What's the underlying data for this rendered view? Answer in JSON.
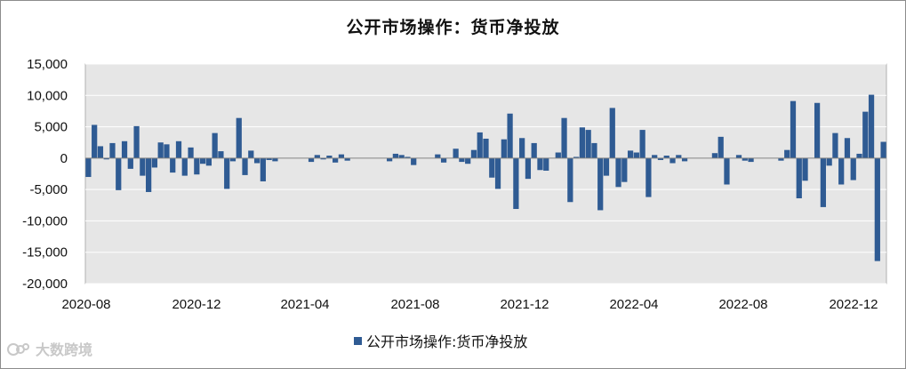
{
  "title": "公开市场操作：货币净投放",
  "legend_label": "公开市场操作:货币净投放",
  "watermark_text": "大数跨境",
  "colors": {
    "bar": "#2f5b93",
    "plot_bg": "#e6e6e6",
    "grid": "#ffffff"
  },
  "chart_data": {
    "type": "bar",
    "title": "公开市场操作：货币净投放",
    "xlabel": "",
    "ylabel": "",
    "ylim": [
      -20000,
      15000
    ],
    "yticks": [
      15000,
      10000,
      5000,
      0,
      -5000,
      -10000,
      -15000,
      -20000
    ],
    "ytick_labels": [
      "15,000",
      "10,000",
      "5,000",
      "0",
      "-5,000",
      "-10,000",
      "-15,000",
      "-20,000"
    ],
    "xtick_labels": [
      "2020-08",
      "2020-12",
      "2021-04",
      "2021-08",
      "2021-12",
      "2022-04",
      "2022-08",
      "2022-12"
    ],
    "legend_position": "bottom",
    "grid": true,
    "series": [
      {
        "name": "公开市场操作:货币净投放",
        "values": [
          -3000,
          5300,
          1900,
          -200,
          2400,
          -5100,
          2700,
          -1700,
          5100,
          -2800,
          -5400,
          -1500,
          2500,
          2200,
          -2300,
          2700,
          -2800,
          1700,
          -2600,
          -900,
          -1200,
          4000,
          1100,
          -4900,
          -500,
          6400,
          -2700,
          1200,
          -800,
          -3700,
          -300,
          -500,
          0,
          0,
          0,
          0,
          0,
          -600,
          500,
          -200,
          400,
          -700,
          600,
          -400,
          0,
          0,
          0,
          0,
          0,
          0,
          -500,
          700,
          500,
          200,
          -1100,
          0,
          0,
          0,
          600,
          -700,
          0,
          1500,
          -600,
          -900,
          1300,
          4100,
          3100,
          -3100,
          -4900,
          3000,
          7100,
          -8100,
          3200,
          -3300,
          2400,
          -1900,
          -2000,
          0,
          900,
          6400,
          -7000,
          200,
          4900,
          4500,
          2400,
          -8300,
          -2800,
          8000,
          -4600,
          -3800,
          1200,
          900,
          4500,
          -6200,
          500,
          -300,
          400,
          -800,
          500,
          -500,
          0,
          0,
          0,
          0,
          800,
          3400,
          -4200,
          0,
          500,
          -400,
          -600,
          0,
          0,
          0,
          0,
          -400,
          1300,
          9100,
          -6400,
          -3600,
          0,
          8800,
          -7800,
          -1200,
          4000,
          -4200,
          3200,
          -3500,
          700,
          7400,
          10100,
          -16400,
          2600
        ]
      }
    ]
  }
}
